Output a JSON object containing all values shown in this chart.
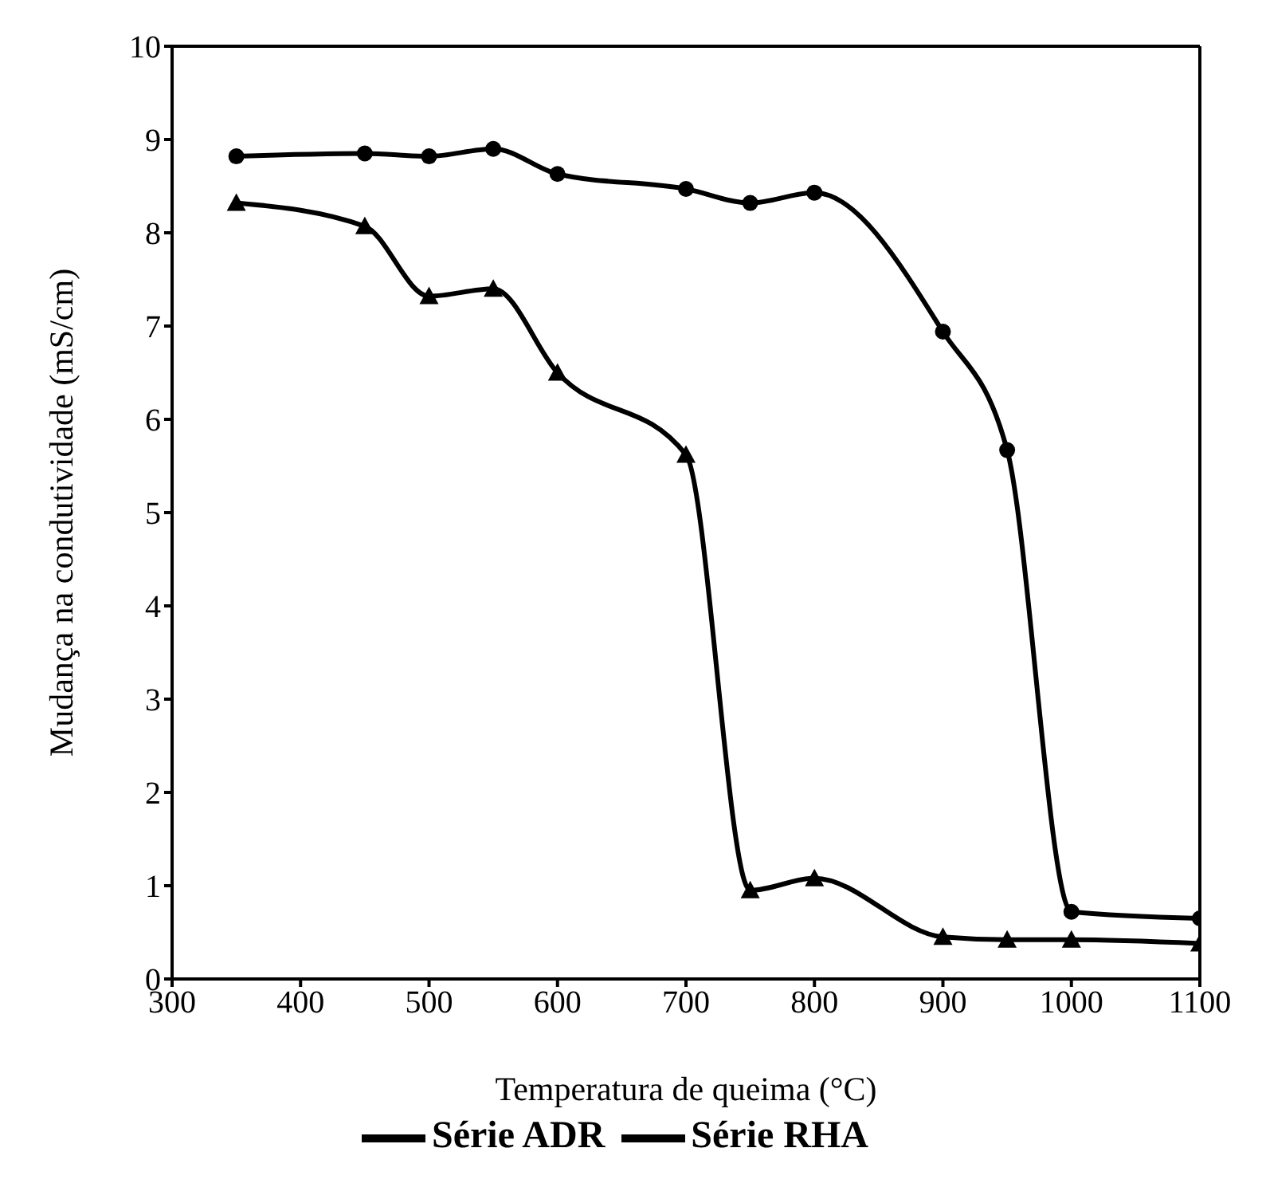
{
  "chart_data": {
    "type": "line",
    "xlabel": "Temperatura de queima (°C)",
    "ylabel": "Mudança na condutividade (mS/cm)",
    "xlim": [
      300,
      1100
    ],
    "xticks": [
      300,
      400,
      500,
      600,
      700,
      800,
      900,
      1000,
      1100
    ],
    "ylim": [
      0,
      10
    ],
    "yticks": [
      0,
      1,
      2,
      3,
      4,
      5,
      6,
      7,
      8,
      9,
      10
    ],
    "legend": "bottom",
    "line_style": "solid",
    "series": [
      {
        "name": "Série ADR",
        "color": "#000000",
        "marker": "circle",
        "x": [
          350,
          450,
          500,
          550,
          600,
          700,
          750,
          800,
          900,
          950,
          1000,
          1100
        ],
        "values": [
          8.82,
          8.85,
          8.82,
          8.9,
          8.63,
          8.47,
          8.32,
          8.43,
          6.94,
          5.67,
          0.72,
          0.65
        ]
      },
      {
        "name": "Série RHA",
        "color": "#000000",
        "marker": "triangle",
        "x": [
          350,
          450,
          500,
          550,
          600,
          700,
          750,
          800,
          900,
          950,
          1000,
          1100
        ],
        "values": [
          8.32,
          8.07,
          7.32,
          7.4,
          6.5,
          5.62,
          0.95,
          1.08,
          0.45,
          0.42,
          0.42,
          0.38
        ]
      }
    ]
  }
}
